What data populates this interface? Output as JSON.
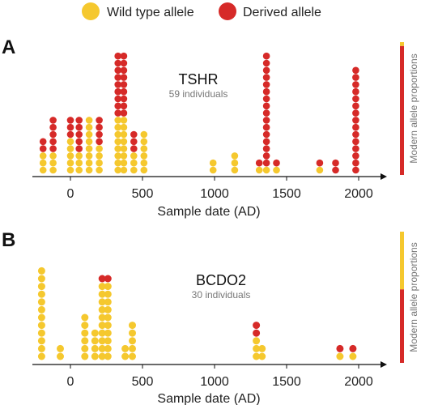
{
  "legend": {
    "wild_label": "Wild type allele",
    "derived_label": "Derived allele",
    "wild_color": "#f5c82e",
    "derived_color": "#d62a28"
  },
  "chart_data": [
    {
      "type": "scatter",
      "panel_label": "A",
      "title": "TSHR",
      "subtitle": "59 individuals",
      "xlabel": "Sample date (AD)",
      "side_label": "Modern allele proportions",
      "xlim": [
        -250,
        2100
      ],
      "xticks": [
        0,
        500,
        1000,
        1500,
        2000
      ],
      "modern_proportion": {
        "wild": 0.03,
        "derived": 0.97
      },
      "stacks": [
        {
          "x": -190,
          "wild": 3,
          "derived": 2
        },
        {
          "x": -120,
          "wild": 3,
          "derived": 5
        },
        {
          "x": 0,
          "wild": 5,
          "derived": 3
        },
        {
          "x": 60,
          "wild": 3,
          "derived": 5
        },
        {
          "x": 130,
          "wild": 8,
          "derived": 0
        },
        {
          "x": 200,
          "wild": 4,
          "derived": 4
        },
        {
          "x": 330,
          "wild": 8,
          "derived": 9
        },
        {
          "x": 370,
          "wild": 8,
          "derived": 9
        },
        {
          "x": 440,
          "wild": 3,
          "derived": 3
        },
        {
          "x": 510,
          "wild": 6,
          "derived": 0
        },
        {
          "x": 990,
          "wild": 2,
          "derived": 0
        },
        {
          "x": 1140,
          "wild": 3,
          "derived": 0
        },
        {
          "x": 1310,
          "wild": 1,
          "derived": 1
        },
        {
          "x": 1360,
          "wild": 1,
          "derived": 16
        },
        {
          "x": 1430,
          "wild": 1,
          "derived": 1
        },
        {
          "x": 1730,
          "wild": 1,
          "derived": 1
        },
        {
          "x": 1840,
          "wild": 0,
          "derived": 2
        },
        {
          "x": 1980,
          "wild": 0,
          "derived": 15
        }
      ]
    },
    {
      "type": "scatter",
      "panel_label": "B",
      "title": "BCDO2",
      "subtitle": "30 individuals",
      "xlabel": "Sample date (AD)",
      "side_label": "Modern allele proportions",
      "xlim": [
        -250,
        2100
      ],
      "xticks": [
        0,
        500,
        1000,
        1500,
        2000
      ],
      "modern_proportion": {
        "wild": 0.44,
        "derived": 0.56
      },
      "stacks": [
        {
          "x": -200,
          "wild": 12,
          "derived": 0
        },
        {
          "x": -70,
          "wild": 2,
          "derived": 0
        },
        {
          "x": 100,
          "wild": 6,
          "derived": 0
        },
        {
          "x": 170,
          "wild": 4,
          "derived": 0
        },
        {
          "x": 220,
          "wild": 10,
          "derived": 1
        },
        {
          "x": 260,
          "wild": 10,
          "derived": 1
        },
        {
          "x": 380,
          "wild": 2,
          "derived": 0
        },
        {
          "x": 430,
          "wild": 5,
          "derived": 0
        },
        {
          "x": 1290,
          "wild": 3,
          "derived": 2
        },
        {
          "x": 1330,
          "wild": 2,
          "derived": 0
        },
        {
          "x": 1870,
          "wild": 1,
          "derived": 1
        },
        {
          "x": 1960,
          "wild": 1,
          "derived": 1
        }
      ]
    }
  ]
}
